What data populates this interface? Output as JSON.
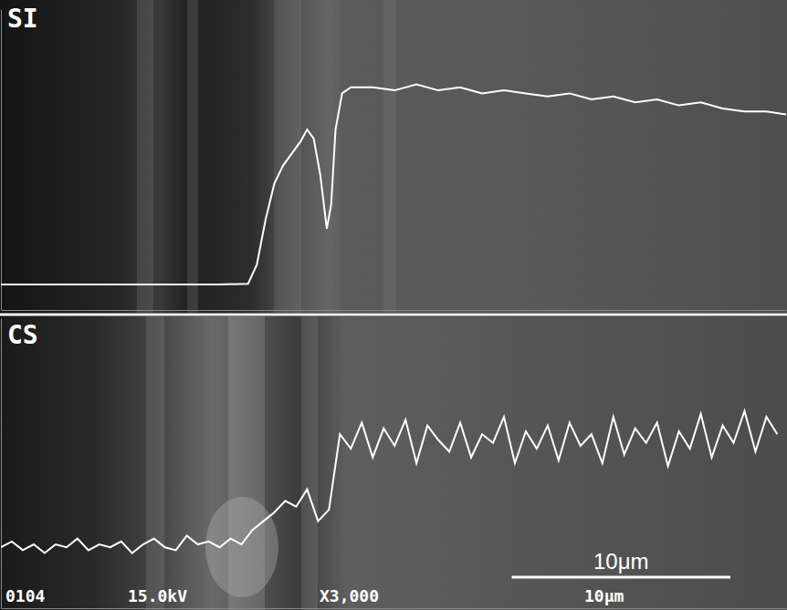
{
  "chart_data": [
    {
      "type": "line",
      "title": "SI",
      "xlim": [
        0,
        35.9
      ],
      "ylim": [
        0,
        100
      ],
      "xticks": [],
      "yticks": [],
      "tick_labels": false,
      "series": [
        {
          "color": "#ffffff",
          "x": [
            0,
            5,
            10,
            11.3,
            11.7,
            12.1,
            12.5,
            12.9,
            13.3,
            13.7,
            14.0,
            14.3,
            14.6,
            14.9,
            15.1,
            15.3,
            15.6,
            16.0,
            17,
            18,
            19,
            20,
            21,
            22,
            23,
            24,
            25,
            26,
            27,
            28,
            29,
            30,
            31,
            32,
            33,
            34,
            35,
            35.9
          ],
          "values": [
            8.5,
            8.5,
            8.5,
            8.7,
            15,
            30,
            42,
            48,
            52,
            56,
            60,
            57,
            45,
            27,
            35,
            60,
            72,
            74,
            74,
            73,
            75,
            73,
            74,
            72,
            73,
            72,
            71,
            72,
            70,
            71,
            69,
            70,
            68,
            69,
            67,
            66,
            66,
            65
          ]
        }
      ]
    },
    {
      "type": "line",
      "title": "CS",
      "xlim": [
        0,
        35.9
      ],
      "ylim": [
        0,
        100
      ],
      "xticks": [],
      "yticks": [],
      "tick_labels": false,
      "series": [
        {
          "color": "#ffffff",
          "x": [
            0,
            0.5,
            1,
            1.5,
            2,
            2.5,
            3,
            3.5,
            4,
            4.5,
            5,
            5.5,
            6,
            6.5,
            7,
            7.5,
            8,
            8.5,
            9,
            9.5,
            10,
            10.5,
            11,
            11.5,
            12,
            12.5,
            13,
            13.5,
            14,
            14.5,
            15,
            15.5,
            16,
            16.5,
            17,
            17.5,
            18,
            18.5,
            19,
            19.5,
            20,
            20.5,
            21,
            21.5,
            22,
            22.5,
            23,
            23.5,
            24,
            24.5,
            25,
            25.5,
            26,
            26.5,
            27,
            27.5,
            28,
            28.5,
            29,
            29.5,
            30,
            30.5,
            31,
            31.5,
            32,
            32.5,
            33,
            33.5,
            34,
            34.5,
            35,
            35.5
          ],
          "values": [
            21,
            23,
            20,
            22,
            19,
            22,
            21,
            24,
            20,
            22,
            21,
            23,
            19,
            22,
            24,
            21,
            20,
            25,
            22,
            23,
            21,
            24,
            22,
            27,
            30,
            33,
            37,
            35,
            41,
            30,
            34,
            60,
            55,
            64,
            52,
            62,
            56,
            65,
            50,
            63,
            58,
            54,
            64,
            52,
            60,
            57,
            66,
            50,
            61,
            55,
            63,
            51,
            64,
            56,
            60,
            50,
            66,
            53,
            62,
            57,
            64,
            49,
            61,
            55,
            67,
            52,
            63,
            57,
            68,
            54,
            66,
            60
          ]
        }
      ]
    }
  ],
  "scale_bar": {
    "value": 10,
    "label": "10μm"
  },
  "footer": [
    "0104",
    "15.0kV",
    "X3,000",
    "10μm"
  ]
}
